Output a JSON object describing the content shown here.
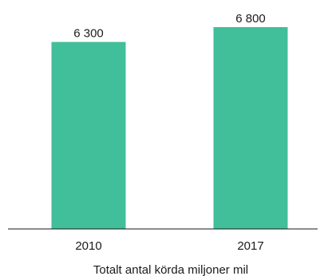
{
  "chart_data": {
    "type": "bar",
    "categories": [
      "2010",
      "2017"
    ],
    "values": [
      6300,
      6800
    ],
    "value_labels": [
      "6 300",
      "6 800"
    ],
    "title": "",
    "xlabel": "Totalt antal körda miljoner mil",
    "ylabel": "",
    "ylim": [
      0,
      6800
    ],
    "grid": false,
    "legend": "none",
    "colors": {
      "bar": "#40bf9a",
      "axis": "#1a1a1a",
      "text": "#1a1a1a"
    }
  }
}
